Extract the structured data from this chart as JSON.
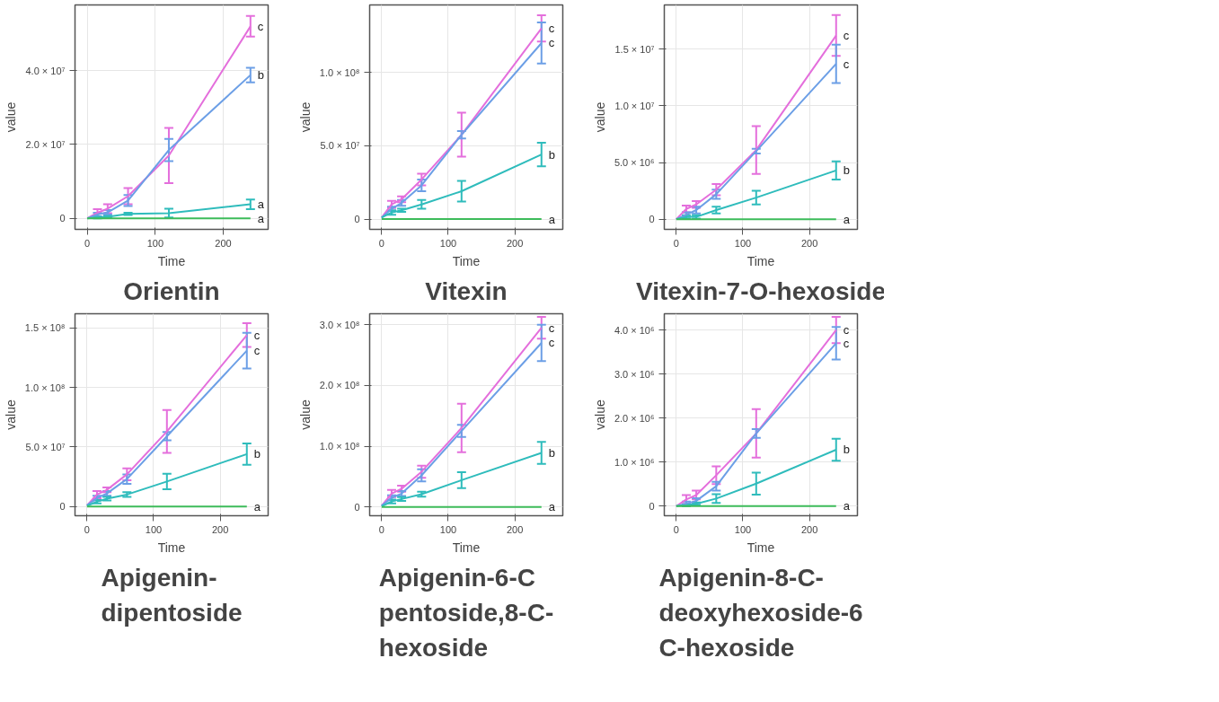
{
  "chart_data": [
    {
      "type": "line",
      "title": "Orientin",
      "xlabel": "Time",
      "ylabel": "value",
      "x": [
        0,
        15,
        30,
        60,
        120,
        240
      ],
      "xlim": [
        -18,
        266
      ],
      "xticks": [
        0,
        100,
        200
      ],
      "ylim": [
        -3000000,
        57800000
      ],
      "yticks": [
        0,
        {
          "value": 20000000,
          "label": "2.0 × 10⁷"
        },
        {
          "value": 40000000,
          "label": "4.0 × 10⁷"
        }
      ],
      "grid": true,
      "series": [
        {
          "color": "#e46fdc",
          "values": [
            0,
            1500000,
            2600000,
            6000000,
            17000000,
            52000000
          ],
          "errors": [
            null,
            1000000,
            1200000,
            2200000,
            7500000,
            2800000
          ]
        },
        {
          "color": "#6c9fe6",
          "values": [
            0,
            1000000,
            1600000,
            4800000,
            18500000,
            38800000
          ],
          "errors": [
            null,
            500000,
            600000,
            1500000,
            3000000,
            2000000
          ]
        },
        {
          "color": "#2fbcbc",
          "values": [
            0,
            200000,
            400000,
            1200000,
            1400000,
            3800000
          ],
          "errors": [
            null,
            200000,
            200000,
            300000,
            1200000,
            1300000
          ]
        },
        {
          "color": "#3dbb5a",
          "values": [
            0,
            0,
            0,
            0,
            0,
            0
          ]
        }
      ],
      "annotations": [
        "c",
        "b",
        "a",
        "a"
      ]
    },
    {
      "type": "line",
      "title": "Vitexin",
      "xlabel": "Time",
      "ylabel": "value",
      "x": [
        0,
        15,
        30,
        60,
        120,
        240
      ],
      "xlim": [
        -18,
        272
      ],
      "xticks": [
        0,
        100,
        200
      ],
      "ylim": [
        -7000000,
        146000000
      ],
      "yticks": [
        0,
        {
          "value": 50000000,
          "label": "5.0 × 10⁷"
        },
        {
          "value": 100000000,
          "label": "1.0 × 10⁸"
        }
      ],
      "grid": true,
      "series": [
        {
          "color": "#e46fdc",
          "values": [
            1000000,
            10000000,
            13500000,
            27000000,
            57500000,
            130000000
          ],
          "errors": [
            null,
            2500000,
            2000000,
            4000000,
            15000000,
            9000000
          ]
        },
        {
          "color": "#6c9fe6",
          "values": [
            1000000,
            7000000,
            11000000,
            23000000,
            57500000,
            120000000
          ],
          "errors": [
            null,
            1500000,
            2000000,
            4000000,
            2500000,
            14000000
          ]
        },
        {
          "color": "#2fbcbc",
          "values": [
            1000000,
            4500000,
            6000000,
            10000000,
            19000000,
            44000000
          ],
          "errors": [
            null,
            1500000,
            1000000,
            3000000,
            7000000,
            8000000
          ]
        },
        {
          "color": "#3dbb5a",
          "values": [
            0,
            0,
            0,
            0,
            0,
            0
          ]
        }
      ],
      "annotations": [
        "c",
        "c",
        "b",
        "a"
      ]
    },
    {
      "type": "line",
      "title": "Vitexin-7-O-hexoside",
      "xlabel": "Time",
      "ylabel": "value",
      "x": [
        0,
        15,
        30,
        60,
        120,
        240
      ],
      "xlim": [
        -18,
        272
      ],
      "xticks": [
        0,
        100,
        200
      ],
      "ylim": [
        -900000,
        18900000
      ],
      "yticks": [
        0,
        {
          "value": 5000000,
          "label": "5.0 × 10⁶"
        },
        {
          "value": 10000000,
          "label": "1.0 × 10⁷"
        },
        {
          "value": 15000000,
          "label": "1.5 × 10⁷"
        }
      ],
      "grid": true,
      "series": [
        {
          "color": "#e46fdc",
          "values": [
            0,
            900000,
            1300000,
            2600000,
            6100000,
            16200000
          ],
          "errors": [
            null,
            300000,
            300000,
            500000,
            2100000,
            1800000
          ]
        },
        {
          "color": "#6c9fe6",
          "values": [
            0,
            400000,
            800000,
            2200000,
            6000000,
            13700000
          ],
          "errors": [
            null,
            200000,
            300000,
            400000,
            200000,
            1700000
          ]
        },
        {
          "color": "#2fbcbc",
          "values": [
            0,
            200000,
            200000,
            800000,
            1900000,
            4300000
          ],
          "errors": [
            null,
            150000,
            150000,
            300000,
            600000,
            800000
          ]
        },
        {
          "color": "#3dbb5a",
          "values": [
            0,
            0,
            0,
            0,
            0,
            0
          ]
        }
      ],
      "annotations": [
        "c",
        "c",
        "b",
        "a"
      ]
    },
    {
      "type": "line",
      "title": "Apigenin-\ndipentoside",
      "xlabel": "Time",
      "ylabel": "value",
      "x": [
        0,
        15,
        30,
        60,
        120,
        240
      ],
      "xlim": [
        -18,
        272
      ],
      "xticks": [
        0,
        100,
        200
      ],
      "ylim": [
        -7800000,
        162000000
      ],
      "yticks": [
        0,
        {
          "value": 50000000,
          "label": "5.0 × 10⁷"
        },
        {
          "value": 100000000,
          "label": "1.0 × 10⁸"
        },
        {
          "value": 150000000,
          "label": "1.5 × 10⁸"
        }
      ],
      "grid": true,
      "series": [
        {
          "color": "#e46fdc",
          "values": [
            1000000,
            10000000,
            14000000,
            27000000,
            63000000,
            144000000
          ],
          "errors": [
            null,
            3000000,
            2000000,
            5000000,
            18000000,
            10000000
          ]
        },
        {
          "color": "#6c9fe6",
          "values": [
            1000000,
            7000000,
            11000000,
            23000000,
            59000000,
            131000000
          ],
          "errors": [
            null,
            2000000,
            2000000,
            4000000,
            3500000,
            15000000
          ]
        },
        {
          "color": "#2fbcbc",
          "values": [
            500000,
            4000000,
            6500000,
            10000000,
            21000000,
            44000000
          ],
          "errors": [
            null,
            1500000,
            1500000,
            2000000,
            6500000,
            9000000
          ]
        },
        {
          "color": "#3dbb5a",
          "values": [
            0,
            0,
            0,
            0,
            0,
            0
          ]
        }
      ],
      "annotations": [
        "c",
        "c",
        "b",
        "a"
      ]
    },
    {
      "type": "line",
      "title": "Apigenin-6-C\npentoside,8-C-\nhexoside",
      "xlabel": "Time",
      "ylabel": "value",
      "x": [
        0,
        15,
        30,
        60,
        120,
        240
      ],
      "xlim": [
        -18,
        272
      ],
      "xticks": [
        0,
        100,
        200
      ],
      "ylim": [
        -14500000,
        318000000
      ],
      "yticks": [
        0,
        {
          "value": 100000000,
          "label": "1.0 × 10⁸"
        },
        {
          "value": 200000000,
          "label": "2.0 × 10⁸"
        },
        {
          "value": 300000000,
          "label": "3.0 × 10⁸"
        }
      ],
      "grid": true,
      "series": [
        {
          "color": "#e46fdc",
          "values": [
            2000000,
            22000000,
            30000000,
            58000000,
            130000000,
            295000000
          ],
          "errors": [
            null,
            6000000,
            5000000,
            10000000,
            40000000,
            18000000
          ]
        },
        {
          "color": "#6c9fe6",
          "values": [
            2000000,
            15000000,
            22000000,
            52000000,
            125000000,
            270000000
          ],
          "errors": [
            null,
            4000000,
            4000000,
            10000000,
            10000000,
            30000000
          ]
        },
        {
          "color": "#2fbcbc",
          "values": [
            1000000,
            9000000,
            13000000,
            21000000,
            44000000,
            89000000
          ],
          "errors": [
            null,
            3000000,
            3000000,
            4000000,
            13000000,
            18000000
          ]
        },
        {
          "color": "#3dbb5a",
          "values": [
            0,
            0,
            0,
            0,
            0,
            0
          ]
        }
      ],
      "annotations": [
        "c",
        "c",
        "b",
        "a"
      ]
    },
    {
      "type": "line",
      "title": "Apigenin-8-C-\ndeoxyhexoside-6\nC-hexoside",
      "xlabel": "Time",
      "ylabel": "value",
      "x": [
        0,
        15,
        30,
        60,
        120,
        240
      ],
      "xlim": [
        -18,
        272
      ],
      "xticks": [
        0,
        100,
        200
      ],
      "ylim": [
        -220000,
        4370000
      ],
      "yticks": [
        0,
        {
          "value": 1000000,
          "label": "1.0 × 10⁶"
        },
        {
          "value": 2000000,
          "label": "2.0 × 10⁶"
        },
        {
          "value": 3000000,
          "label": "3.0 × 10⁶"
        },
        {
          "value": 4000000,
          "label": "4.0 × 10⁶"
        }
      ],
      "grid": true,
      "series": [
        {
          "color": "#e46fdc",
          "values": [
            0,
            150000,
            250000,
            700000,
            1650000,
            4000000
          ],
          "errors": [
            null,
            100000,
            100000,
            200000,
            550000,
            300000
          ]
        },
        {
          "color": "#6c9fe6",
          "values": [
            0,
            50000,
            120000,
            450000,
            1650000,
            3700000
          ],
          "errors": [
            null,
            50000,
            60000,
            100000,
            100000,
            370000
          ]
        },
        {
          "color": "#2fbcbc",
          "values": [
            0,
            20000,
            50000,
            170000,
            510000,
            1280000
          ],
          "errors": [
            null,
            20000,
            30000,
            100000,
            250000,
            250000
          ]
        },
        {
          "color": "#3dbb5a",
          "values": [
            0,
            0,
            0,
            0,
            0,
            0
          ]
        }
      ],
      "annotations": [
        "c",
        "c",
        "b",
        "a"
      ]
    }
  ]
}
